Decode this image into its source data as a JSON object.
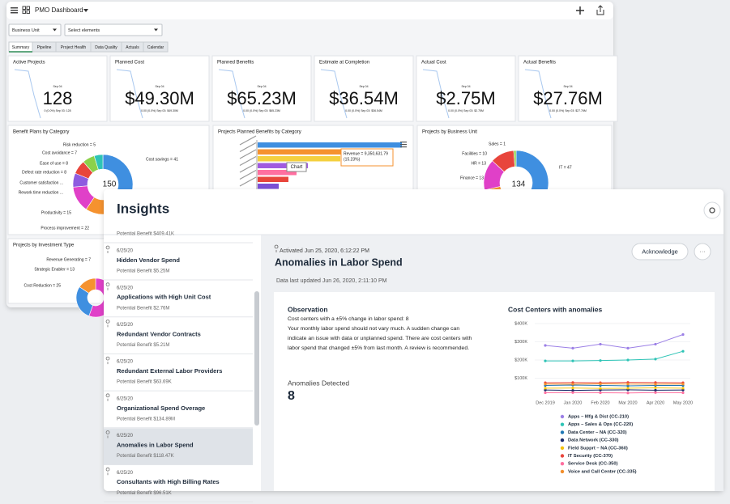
{
  "dashboard": {
    "title": "PMO Dashboard",
    "filters": [
      "Business Unit",
      "Select elements"
    ],
    "tabs": [
      "Summary",
      "Pipeline",
      "Project Health",
      "Data Quality",
      "Actuals",
      "Calendar"
    ],
    "kpis": [
      {
        "label": "Active Projects",
        "value": "128",
        "date": "Sep 04",
        "sub": "0 (0.0%)  Sep 03: 128"
      },
      {
        "label": "Planned Cost",
        "value": "$49.30M",
        "date": "Sep 04",
        "sub": "0.00 (0.0%)  Sep 03: $49.30M"
      },
      {
        "label": "Planned Benefits",
        "value": "$65.23M",
        "date": "Sep 04",
        "sub": "0.00 (0.0%)  Sep 03: $65.23M"
      },
      {
        "label": "Estimate at Completion",
        "value": "$36.54M",
        "date": "Sep 04",
        "sub": "0.00 (0.0%)  Sep 03: $36.54M"
      },
      {
        "label": "Actual Cost",
        "value": "$2.75M",
        "date": "Sep 04",
        "sub": "0.00 (0.0%)  Sep 03: $2.75M"
      },
      {
        "label": "Actual Benefits",
        "value": "$27.76M",
        "date": "Sep 04",
        "sub": "0.00 (0.0%)  Sep 03: $27.76M"
      }
    ],
    "benefit_plans": {
      "title": "Benefit Plans by Category",
      "total": "150",
      "items": [
        {
          "label": "Cost savings = 41",
          "value": 41,
          "color": "#3f8fe0"
        },
        {
          "label": "Process improvement = 22",
          "value": 22,
          "color": "#f5922f"
        },
        {
          "label": "Productivity = 15",
          "value": 15,
          "color": "#e040c8"
        },
        {
          "label": "Defect rate reduction = 8",
          "value": 8,
          "color": "#8e5be0"
        },
        {
          "label": "Ease of use = 8",
          "value": 8,
          "color": "#e8453c"
        },
        {
          "label": "Cost avoidance = 7",
          "value": 7,
          "color": "#8bd14a"
        },
        {
          "label": "Risk reduction = 5",
          "value": 5,
          "color": "#2ec4b6"
        }
      ],
      "truncated": [
        "Customer satisfaction ...",
        "Rework time reduction ..."
      ]
    },
    "planned_benefits": {
      "title": "Projects Planned Benefits by Category",
      "values": [
        178,
        140,
        102,
        62,
        48,
        38,
        26
      ],
      "colors": [
        "#3f8fe0",
        "#f5922f",
        "#f4d03f",
        "#a05be0",
        "#ff6fa0",
        "#e8453c",
        "#7b4fd6"
      ],
      "tooltip": [
        "Revenue = 9,350,631.79",
        "(15.23%)"
      ],
      "hover": "Chart"
    },
    "business_unit": {
      "title": "Projects by Business Unit",
      "total": "134",
      "items": [
        {
          "label": "IT = 47",
          "value": 47,
          "color": "#3f8fe0"
        },
        {
          "label": "Finance = 13",
          "value": 13,
          "color": "#f5922f"
        },
        {
          "label": "HR = 13",
          "value": 13,
          "color": "#e040c8"
        },
        {
          "label": "Facilities = 10",
          "value": 10,
          "color": "#e8453c"
        },
        {
          "label": "Sales = 1",
          "value": 1,
          "color": "#8bd14a"
        }
      ]
    },
    "investment_type": {
      "title": "Projects by Investment Type",
      "items": [
        {
          "label": "Cost Reduction = 25",
          "value": 25,
          "color": "#e040c8"
        },
        {
          "label": "Strategic Enabler = 13",
          "value": 13,
          "color": "#3f8fe0"
        },
        {
          "label": "Revenue Generating = 7",
          "value": 7,
          "color": "#f5922f"
        }
      ]
    }
  },
  "insights": {
    "title": "Insights",
    "partial_benefit": "Potential Benefit $409.41K",
    "items": [
      {
        "date": "6/25/20",
        "title": "Hidden Vendor Spend",
        "benefit": "Potential Benefit $5.25M"
      },
      {
        "date": "6/25/20",
        "title": "Applications with High Unit Cost",
        "benefit": "Potential Benefit $2.76M"
      },
      {
        "date": "6/25/20",
        "title": "Redundant Vendor Contracts",
        "benefit": "Potential Benefit $5.21M"
      },
      {
        "date": "6/25/20",
        "title": "Redundant External Labor Providers",
        "benefit": "Potential Benefit $63.69K"
      },
      {
        "date": "6/25/20",
        "title": "Organizational Spend Overage",
        "benefit": "Potential Benefit $134.89M"
      },
      {
        "date": "6/25/20",
        "title": "Anomalies in Labor Spend",
        "benefit": "Potential Benefit $118.47K"
      },
      {
        "date": "6/25/20",
        "title": "Consultants with High Billing Rates",
        "benefit": "Potential Benefit $96.51K"
      }
    ],
    "detail": {
      "activated": "Activated Jun 25, 2020, 6:12:22 PM",
      "title": "Anomalies in Labor Spend",
      "updated": "Data last updated Jun 26, 2020, 2:11:10 PM",
      "acknowledge": "Acknowledge",
      "more": "···",
      "observation": "Observation",
      "summary": "Cost centers with a ±5% change in labor spend: 8",
      "text": [
        "Your monthly labor spend should not vary much. A sudden change can",
        "indicate an issue with data or unplanned spend. There are cost centers with",
        "labor spend that changed ±5% from last month. A review is recommended."
      ],
      "anomalies_label": "Anomalies Detected",
      "anomalies_count": "8"
    }
  },
  "chart_data": {
    "type": "line",
    "title": "Cost Centers with anomalies",
    "categories": [
      "Dec 2019",
      "Jan 2020",
      "Feb 2020",
      "Mar 2020",
      "Apr 2020",
      "May 2020"
    ],
    "ylim": [
      0,
      400000
    ],
    "yticks": [
      {
        "value": 100000,
        "label": "$100K"
      },
      {
        "value": 200000,
        "label": "$200K"
      },
      {
        "value": 300000,
        "label": "$300K"
      },
      {
        "value": 400000,
        "label": "$400K"
      }
    ],
    "grid": true,
    "series": [
      {
        "name": "Apps – Mfg & Dist (CC-210)",
        "color": "#9b7fe6",
        "values": [
          280000,
          265000,
          287000,
          265000,
          287000,
          340000
        ]
      },
      {
        "name": "Apps – Sales & Ops (CC-220)",
        "color": "#2ec4b6",
        "values": [
          195000,
          195000,
          197000,
          200000,
          205000,
          248000
        ]
      },
      {
        "name": "Data Center – NA (CC-320)",
        "color": "#1f77b4",
        "values": [
          60000,
          62000,
          60000,
          58000,
          60000,
          60000
        ]
      },
      {
        "name": "Data Network (CC-330)",
        "color": "#1a2b6b",
        "values": [
          35000,
          33000,
          35000,
          36000,
          34000,
          35000
        ]
      },
      {
        "name": "Field Supprt – NA (CC-360)",
        "color": "#f4c20d",
        "values": [
          45000,
          46000,
          44000,
          45000,
          47000,
          45000
        ]
      },
      {
        "name": "IT Security (CC-370)",
        "color": "#e8453c",
        "values": [
          75000,
          76000,
          75000,
          77000,
          76000,
          75000
        ]
      },
      {
        "name": "Service Desk (CC-350)",
        "color": "#ff6fa0",
        "values": [
          20000,
          21000,
          20000,
          19000,
          21000,
          20000
        ]
      },
      {
        "name": "Voice and Call Center (CC-335)",
        "color": "#f28e2b",
        "values": [
          68000,
          67000,
          69000,
          68000,
          67000,
          68000
        ]
      }
    ]
  }
}
